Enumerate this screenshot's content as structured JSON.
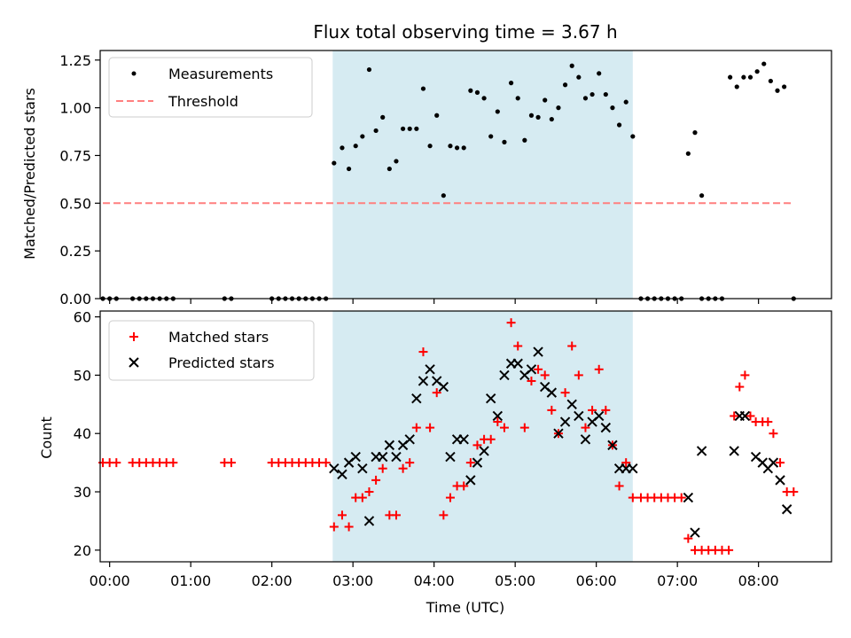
{
  "chart_data": [
    {
      "type": "scatter",
      "title": "Flux total observing time = 3.67 h",
      "xlabel": "",
      "ylabel": "Matched/Predicted stars",
      "xlim": [
        "-0:07",
        "08:54"
      ],
      "ylim": [
        0,
        1.3
      ],
      "yticks": [
        "0.00",
        "0.25",
        "0.50",
        "0.75",
        "1.00",
        "1.25"
      ],
      "grid": false,
      "legend_position": "top-left",
      "shaded_region": {
        "x_start": "02:45",
        "x_end": "06:27",
        "color": "#add8e6"
      },
      "series": [
        {
          "name": "Measurements",
          "marker": "dot",
          "color": "#000000",
          "points": [
            [
              "-0:05",
              0
            ],
            [
              "0:00",
              0
            ],
            [
              "0:05",
              0
            ],
            [
              "0:17",
              0
            ],
            [
              "0:22",
              0
            ],
            [
              "0:27",
              0
            ],
            [
              "0:32",
              0
            ],
            [
              "0:37",
              0
            ],
            [
              "0:42",
              0
            ],
            [
              "0:47",
              0
            ],
            [
              "1:25",
              0
            ],
            [
              "1:30",
              0
            ],
            [
              "2:00",
              0
            ],
            [
              "2:05",
              0
            ],
            [
              "2:10",
              0
            ],
            [
              "2:15",
              0
            ],
            [
              "2:20",
              0
            ],
            [
              "2:25",
              0
            ],
            [
              "2:30",
              0
            ],
            [
              "2:35",
              0
            ],
            [
              "2:40",
              0
            ],
            [
              "2:46",
              0.71
            ],
            [
              "2:52",
              0.79
            ],
            [
              "2:57",
              0.68
            ],
            [
              "3:02",
              0.8
            ],
            [
              "3:07",
              0.85
            ],
            [
              "3:12",
              1.2
            ],
            [
              "3:17",
              0.88
            ],
            [
              "3:22",
              0.95
            ],
            [
              "3:27",
              0.68
            ],
            [
              "3:32",
              0.72
            ],
            [
              "3:37",
              0.89
            ],
            [
              "3:42",
              0.89
            ],
            [
              "3:47",
              0.89
            ],
            [
              "3:52",
              1.1
            ],
            [
              "3:57",
              0.8
            ],
            [
              "4:02",
              0.96
            ],
            [
              "4:07",
              0.54
            ],
            [
              "4:12",
              0.8
            ],
            [
              "4:17",
              0.79
            ],
            [
              "4:22",
              0.79
            ],
            [
              "4:27",
              1.09
            ],
            [
              "4:32",
              1.08
            ],
            [
              "4:37",
              1.05
            ],
            [
              "4:42",
              0.85
            ],
            [
              "4:47",
              0.98
            ],
            [
              "4:52",
              0.82
            ],
            [
              "4:57",
              1.13
            ],
            [
              "5:02",
              1.05
            ],
            [
              "5:07",
              0.83
            ],
            [
              "5:12",
              0.96
            ],
            [
              "5:17",
              0.95
            ],
            [
              "5:22",
              1.04
            ],
            [
              "5:27",
              0.94
            ],
            [
              "5:32",
              1.0
            ],
            [
              "5:37",
              1.12
            ],
            [
              "5:42",
              1.22
            ],
            [
              "5:47",
              1.16
            ],
            [
              "5:52",
              1.05
            ],
            [
              "5:57",
              1.07
            ],
            [
              "6:02",
              1.18
            ],
            [
              "6:07",
              1.07
            ],
            [
              "6:12",
              1.0
            ],
            [
              "6:17",
              0.91
            ],
            [
              "6:22",
              1.03
            ],
            [
              "6:27",
              0.85
            ],
            [
              "6:33",
              0
            ],
            [
              "6:38",
              0
            ],
            [
              "6:43",
              0
            ],
            [
              "6:48",
              0
            ],
            [
              "6:53",
              0
            ],
            [
              "6:58",
              0
            ],
            [
              "7:03",
              0
            ],
            [
              "7:18",
              0
            ],
            [
              "7:23",
              0
            ],
            [
              "7:28",
              0
            ],
            [
              "7:33",
              0
            ],
            [
              "7:08",
              0.76
            ],
            [
              "7:13",
              0.87
            ],
            [
              "7:18",
              0.54
            ],
            [
              "7:39",
              1.16
            ],
            [
              "7:44",
              1.11
            ],
            [
              "7:49",
              1.16
            ],
            [
              "7:54",
              1.16
            ],
            [
              "7:59",
              1.19
            ],
            [
              "8:04",
              1.23
            ],
            [
              "8:09",
              1.14
            ],
            [
              "8:14",
              1.09
            ],
            [
              "8:19",
              1.11
            ],
            [
              "8:26",
              0
            ]
          ]
        },
        {
          "name": "Threshold",
          "marker": "dashed-line",
          "color": "#ff7f7f",
          "points": [
            [
              "-0:05",
              0.5
            ],
            [
              "8:26",
              0.5
            ]
          ]
        }
      ]
    },
    {
      "type": "scatter",
      "title": "",
      "xlabel": "Time (UTC)",
      "ylabel": "Count",
      "xlim": [
        "-0:07",
        "08:54"
      ],
      "ylim": [
        18,
        61
      ],
      "xticks": [
        "00:00",
        "01:00",
        "02:00",
        "03:00",
        "04:00",
        "05:00",
        "06:00",
        "07:00",
        "08:00"
      ],
      "yticks": [
        "20",
        "30",
        "40",
        "50",
        "60"
      ],
      "grid": false,
      "legend_position": "top-left",
      "shaded_region": {
        "x_start": "02:45",
        "x_end": "06:27",
        "color": "#add8e6"
      },
      "series": [
        {
          "name": "Matched stars",
          "marker": "plus",
          "color": "#ff0000",
          "points": [
            [
              "-0:05",
              35
            ],
            [
              "0:00",
              35
            ],
            [
              "0:05",
              35
            ],
            [
              "0:17",
              35
            ],
            [
              "0:22",
              35
            ],
            [
              "0:27",
              35
            ],
            [
              "0:32",
              35
            ],
            [
              "0:37",
              35
            ],
            [
              "0:42",
              35
            ],
            [
              "0:47",
              35
            ],
            [
              "1:25",
              35
            ],
            [
              "1:30",
              35
            ],
            [
              "2:00",
              35
            ],
            [
              "2:05",
              35
            ],
            [
              "2:10",
              35
            ],
            [
              "2:15",
              35
            ],
            [
              "2:20",
              35
            ],
            [
              "2:25",
              35
            ],
            [
              "2:30",
              35
            ],
            [
              "2:35",
              35
            ],
            [
              "2:40",
              35
            ],
            [
              "2:46",
              24
            ],
            [
              "2:52",
              26
            ],
            [
              "2:57",
              24
            ],
            [
              "3:02",
              29
            ],
            [
              "3:07",
              29
            ],
            [
              "3:12",
              30
            ],
            [
              "3:17",
              32
            ],
            [
              "3:22",
              34
            ],
            [
              "3:27",
              26
            ],
            [
              "3:32",
              26
            ],
            [
              "3:37",
              34
            ],
            [
              "3:42",
              35
            ],
            [
              "3:47",
              41
            ],
            [
              "3:52",
              54
            ],
            [
              "3:57",
              41
            ],
            [
              "4:02",
              47
            ],
            [
              "4:07",
              26
            ],
            [
              "4:12",
              29
            ],
            [
              "4:17",
              31
            ],
            [
              "4:22",
              31
            ],
            [
              "4:27",
              35
            ],
            [
              "4:32",
              38
            ],
            [
              "4:37",
              39
            ],
            [
              "4:42",
              39
            ],
            [
              "4:47",
              42
            ],
            [
              "4:52",
              41
            ],
            [
              "4:57",
              59
            ],
            [
              "5:02",
              55
            ],
            [
              "5:07",
              41
            ],
            [
              "5:12",
              49
            ],
            [
              "5:17",
              51
            ],
            [
              "5:22",
              50
            ],
            [
              "5:27",
              44
            ],
            [
              "5:32",
              40
            ],
            [
              "5:37",
              47
            ],
            [
              "5:42",
              55
            ],
            [
              "5:47",
              50
            ],
            [
              "5:52",
              41
            ],
            [
              "5:57",
              44
            ],
            [
              "6:02",
              51
            ],
            [
              "6:07",
              44
            ],
            [
              "6:12",
              38
            ],
            [
              "6:17",
              31
            ],
            [
              "6:22",
              35
            ],
            [
              "6:27",
              29
            ],
            [
              "6:33",
              29
            ],
            [
              "6:38",
              29
            ],
            [
              "6:43",
              29
            ],
            [
              "6:48",
              29
            ],
            [
              "6:53",
              29
            ],
            [
              "6:58",
              29
            ],
            [
              "7:03",
              29
            ],
            [
              "7:08",
              22
            ],
            [
              "7:13",
              20
            ],
            [
              "7:18",
              20
            ],
            [
              "7:23",
              20
            ],
            [
              "7:28",
              20
            ],
            [
              "7:33",
              20
            ],
            [
              "7:38",
              20
            ],
            [
              "7:42",
              43
            ],
            [
              "7:46",
              48
            ],
            [
              "7:50",
              50
            ],
            [
              "7:54",
              43
            ],
            [
              "7:58",
              42
            ],
            [
              "8:03",
              42
            ],
            [
              "8:07",
              42
            ],
            [
              "8:11",
              40
            ],
            [
              "8:16",
              35
            ],
            [
              "8:21",
              30
            ],
            [
              "8:26",
              30
            ]
          ]
        },
        {
          "name": "Predicted stars",
          "marker": "x",
          "color": "#000000",
          "points": [
            [
              "2:46",
              34
            ],
            [
              "2:52",
              33
            ],
            [
              "2:57",
              35
            ],
            [
              "3:02",
              36
            ],
            [
              "3:07",
              34
            ],
            [
              "3:12",
              25
            ],
            [
              "3:17",
              36
            ],
            [
              "3:22",
              36
            ],
            [
              "3:27",
              38
            ],
            [
              "3:32",
              36
            ],
            [
              "3:37",
              38
            ],
            [
              "3:42",
              39
            ],
            [
              "3:47",
              46
            ],
            [
              "3:52",
              49
            ],
            [
              "3:57",
              51
            ],
            [
              "4:02",
              49
            ],
            [
              "4:07",
              48
            ],
            [
              "4:12",
              36
            ],
            [
              "4:17",
              39
            ],
            [
              "4:22",
              39
            ],
            [
              "4:27",
              32
            ],
            [
              "4:32",
              35
            ],
            [
              "4:37",
              37
            ],
            [
              "4:42",
              46
            ],
            [
              "4:47",
              43
            ],
            [
              "4:52",
              50
            ],
            [
              "4:57",
              52
            ],
            [
              "5:02",
              52
            ],
            [
              "5:07",
              50
            ],
            [
              "5:12",
              51
            ],
            [
              "5:17",
              54
            ],
            [
              "5:22",
              48
            ],
            [
              "5:27",
              47
            ],
            [
              "5:32",
              40
            ],
            [
              "5:37",
              42
            ],
            [
              "5:42",
              45
            ],
            [
              "5:47",
              43
            ],
            [
              "5:52",
              39
            ],
            [
              "5:57",
              42
            ],
            [
              "6:02",
              43
            ],
            [
              "6:07",
              41
            ],
            [
              "6:12",
              38
            ],
            [
              "6:17",
              34
            ],
            [
              "6:22",
              34
            ],
            [
              "6:27",
              34
            ],
            [
              "7:08",
              29
            ],
            [
              "7:13",
              23
            ],
            [
              "7:18",
              37
            ],
            [
              "7:42",
              37
            ],
            [
              "7:46",
              43
            ],
            [
              "7:50",
              43
            ],
            [
              "7:58",
              36
            ],
            [
              "8:03",
              35
            ],
            [
              "8:07",
              34
            ],
            [
              "8:11",
              35
            ],
            [
              "8:16",
              32
            ],
            [
              "8:21",
              27
            ]
          ]
        }
      ]
    }
  ]
}
